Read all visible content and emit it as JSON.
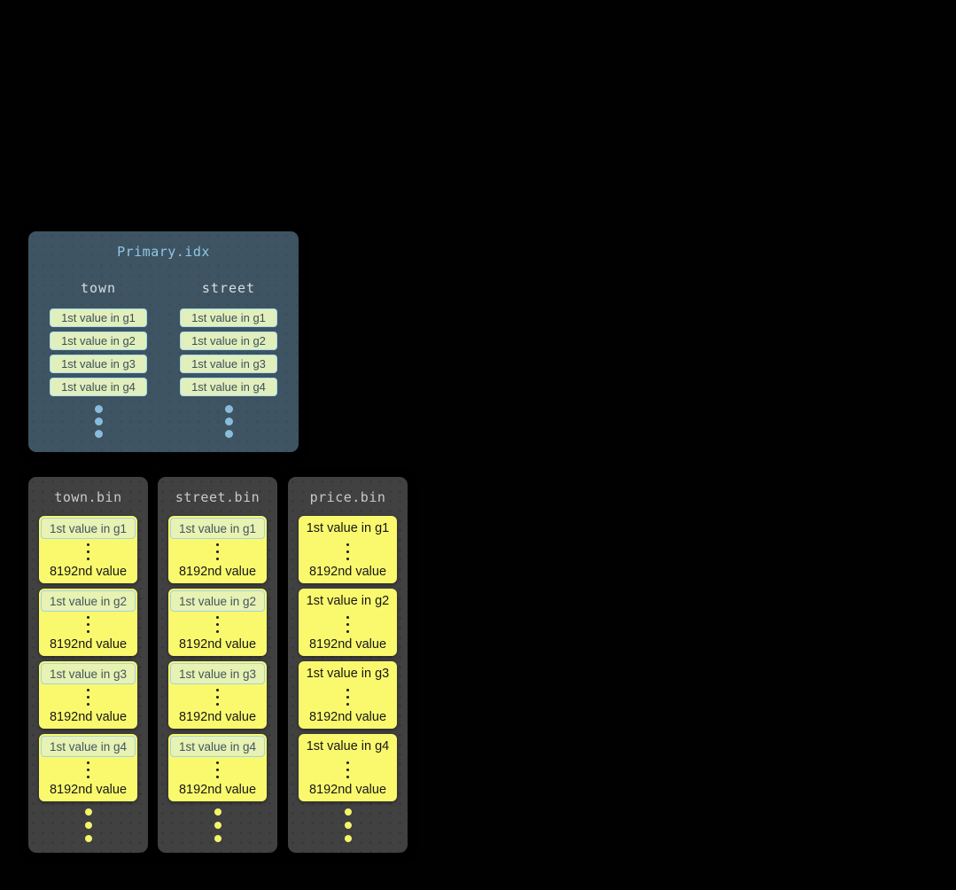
{
  "colors": {
    "page_background": "#000000",
    "index_box_background": "#3e5462",
    "index_title_text": "#8fc7e8",
    "column_label_text": "#d8dee2",
    "index_chip_background": "#e1efbc",
    "index_chip_border": "#a8dcee",
    "index_chip_text": "#3d4f59",
    "index_ellipsis_dot": "#89bcdb",
    "bin_background": "#414141",
    "bin_title_text": "#c6cacd",
    "granule_block_background": "#faf96e",
    "granule_text": "#161616",
    "granule_chip_background": "#e7f2b3",
    "granule_chip_border": "#a0d3e7",
    "granule_chip_text": "#42555f",
    "bin_ellipsis_dot": "#f5f468"
  },
  "primary_index": {
    "title": "Primary.idx",
    "columns": [
      {
        "label": "town",
        "entries": [
          "1st value in g1",
          "1st value in g2",
          "1st value in g3",
          "1st value in g4"
        ]
      },
      {
        "label": "street",
        "entries": [
          "1st value in g1",
          "1st value in g2",
          "1st value in g3",
          "1st value in g4"
        ]
      }
    ]
  },
  "bins": [
    {
      "title": "town.bin",
      "granules": [
        {
          "first": "1st value in g1",
          "last": "8192nd value"
        },
        {
          "first": "1st value in g2",
          "last": "8192nd value"
        },
        {
          "first": "1st value in g3",
          "last": "8192nd value"
        },
        {
          "first": "1st value in g4",
          "last": "8192nd value"
        }
      ]
    },
    {
      "title": "street.bin",
      "granules": [
        {
          "first": "1st value in g1",
          "last": "8192nd value"
        },
        {
          "first": "1st value in g2",
          "last": "8192nd value"
        },
        {
          "first": "1st value in g3",
          "last": "8192nd value"
        },
        {
          "first": "1st value in g4",
          "last": "8192nd value"
        }
      ]
    },
    {
      "title": "price.bin",
      "granules": [
        {
          "first": "1st value in g1",
          "last": "8192nd value"
        },
        {
          "first": "1st value in g2",
          "last": "8192nd value"
        },
        {
          "first": "1st value in g3",
          "last": "8192nd value"
        },
        {
          "first": "1st value in g4",
          "last": "8192nd value"
        }
      ]
    }
  ]
}
